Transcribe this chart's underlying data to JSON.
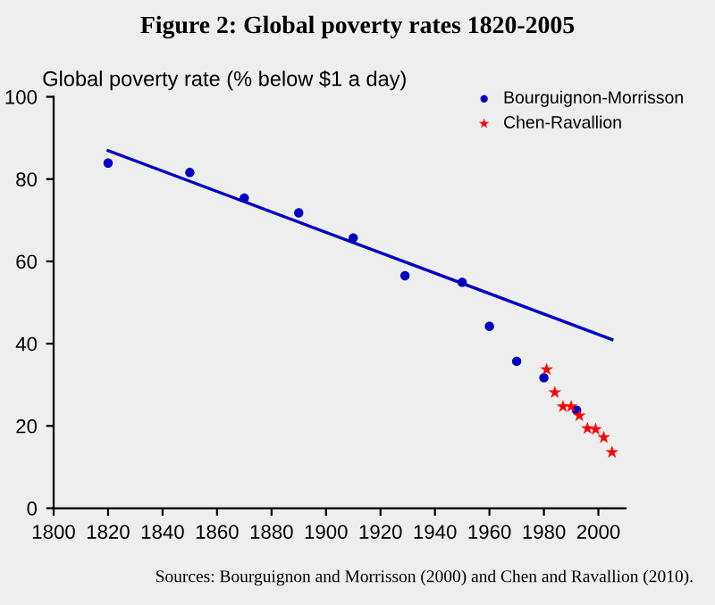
{
  "chart_data": {
    "type": "scatter",
    "title": "Figure 2: Global poverty rates 1820-2005",
    "ylabel": "Global poverty rate (% below $1 a day)",
    "series": [
      {
        "name": "Bourguignon-Morrisson",
        "marker": "circle",
        "color": "#0000c0",
        "x": [
          1820,
          1850,
          1870,
          1890,
          1910,
          1929,
          1950,
          1960,
          1970,
          1980,
          1992
        ],
        "values": [
          83.9,
          81.6,
          75.4,
          71.8,
          65.7,
          56.5,
          54.9,
          44.2,
          35.7,
          31.7,
          23.8
        ]
      },
      {
        "name": "Chen-Ravallion",
        "marker": "star",
        "color": "#ff0000",
        "x": [
          1981,
          1984,
          1987,
          1990,
          1993,
          1996,
          1999,
          2002,
          2005
        ],
        "values": [
          33.7,
          28.1,
          24.7,
          24.7,
          22.5,
          19.4,
          19.2,
          17.2,
          13.6
        ]
      },
      {
        "type": "line",
        "color": "#0000c0",
        "x": [
          1820,
          2005
        ],
        "values": [
          86.9,
          41.0
        ]
      }
    ],
    "xlim": [
      1800,
      2010
    ],
    "xticks": [
      1800,
      1820,
      1840,
      1860,
      1880,
      1900,
      1920,
      1940,
      1960,
      1980,
      2000
    ],
    "ylim": [
      0,
      100
    ],
    "yticks": [
      0,
      20,
      40,
      60,
      80,
      100
    ],
    "grid": false,
    "legend": "top right",
    "annotations": [
      "Sources: Bourguignon and Morrisson (2000) and Chen and Ravallion (2010)."
    ]
  }
}
